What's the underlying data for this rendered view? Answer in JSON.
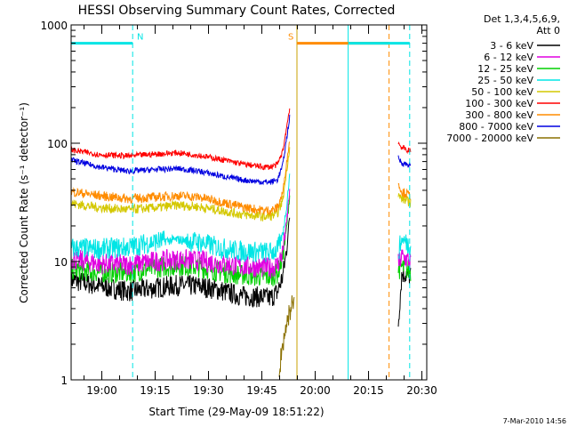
{
  "chart_data": {
    "type": "line",
    "title": "HESSI Observing Summary Count Rates, Corrected",
    "xlabel": "Start Time (29-May-09 18:51:22)",
    "ylabel": "Corrected Count Rate (s⁻¹ detector⁻¹)",
    "y_scale": "log",
    "ylim": [
      1,
      1000
    ],
    "xlim_minutes": [
      0,
      100
    ],
    "x_tick_labels": [
      "19:00",
      "19:15",
      "19:30",
      "19:45",
      "20:00",
      "20:15",
      "20:30"
    ],
    "x_tick_minutes": [
      8.63,
      23.63,
      38.63,
      53.63,
      68.63,
      83.63,
      98.63
    ],
    "y_tick_labels": [
      "1",
      "10",
      "100",
      "1000"
    ],
    "y_tick_values": [
      1,
      10,
      100,
      1000
    ],
    "detector_info": [
      "Det 1,3,4,5,6,9,",
      "Att 0"
    ],
    "footer_date": "7-Mar-2010 14:56",
    "flags": [
      {
        "label": "N",
        "color": "#00e5e5",
        "start_min": 0,
        "end_min": 17.3
      },
      {
        "label": "S",
        "color": "#ff8c00",
        "start_min": 63.5,
        "end_min": 89.4
      },
      {
        "label": "",
        "color": "#00e5e5",
        "start_min": 77.9,
        "end_min": 95.2
      }
    ],
    "vlines": [
      {
        "minute": 17.3,
        "color": "#00e5e5",
        "style": "dashed"
      },
      {
        "minute": 63.5,
        "color": "#c8a000",
        "style": "solid"
      },
      {
        "minute": 77.9,
        "color": "#00e5e5",
        "style": "solid"
      },
      {
        "minute": 89.4,
        "color": "#ff8c00",
        "style": "dashed"
      },
      {
        "minute": 95.2,
        "color": "#00e5e5",
        "style": "dashed"
      }
    ],
    "series": [
      {
        "name": "3 - 6 keV",
        "color": "#000000",
        "points": [
          [
            0,
            7
          ],
          [
            8,
            6.2
          ],
          [
            16,
            5.6
          ],
          [
            24,
            6
          ],
          [
            30,
            6.3
          ],
          [
            36,
            6.2
          ],
          [
            42,
            5.7
          ],
          [
            48,
            5.1
          ],
          [
            54,
            5
          ],
          [
            56,
            4.9
          ],
          [
            58,
            5.5
          ],
          [
            59.5,
            7.5
          ],
          [
            60.5,
            12
          ],
          [
            61.5,
            25
          ]
        ],
        "post": [
          [
            92,
            3
          ],
          [
            93,
            8
          ],
          [
            95.5,
            7.5
          ]
        ]
      },
      {
        "name": "6 - 12 keV",
        "color": "#e000e0",
        "points": [
          [
            0,
            10.5
          ],
          [
            8,
            9.6
          ],
          [
            16,
            9.4
          ],
          [
            24,
            10.1
          ],
          [
            30,
            10.4
          ],
          [
            36,
            10.2
          ],
          [
            42,
            9.6
          ],
          [
            48,
            9.1
          ],
          [
            54,
            8.9
          ],
          [
            56,
            8.8
          ],
          [
            58,
            9.3
          ],
          [
            59.5,
            12
          ],
          [
            60.5,
            20
          ],
          [
            61.5,
            42
          ]
        ],
        "post": [
          [
            92,
            9.5
          ],
          [
            93,
            11
          ],
          [
            95.5,
            10
          ]
        ]
      },
      {
        "name": "12 - 25 keV",
        "color": "#00d000",
        "points": [
          [
            0,
            8.6
          ],
          [
            8,
            8.1
          ],
          [
            16,
            8
          ],
          [
            24,
            8.9
          ],
          [
            30,
            9.3
          ],
          [
            36,
            9
          ],
          [
            42,
            8.2
          ],
          [
            48,
            7.7
          ],
          [
            54,
            7.5
          ],
          [
            56,
            7.4
          ],
          [
            58,
            7.9
          ],
          [
            59.5,
            11
          ],
          [
            60.5,
            18
          ],
          [
            61.5,
            38
          ]
        ],
        "post": [
          [
            92,
            8.5
          ],
          [
            93,
            9
          ],
          [
            95.5,
            8.3
          ]
        ]
      },
      {
        "name": "25 - 50 keV",
        "color": "#00e5e5",
        "points": [
          [
            0,
            13
          ],
          [
            8,
            12.8
          ],
          [
            16,
            13.2
          ],
          [
            24,
            14.8
          ],
          [
            30,
            15.3
          ],
          [
            36,
            14.6
          ],
          [
            42,
            13
          ],
          [
            48,
            12.2
          ],
          [
            54,
            12
          ],
          [
            56,
            12
          ],
          [
            58,
            12.5
          ],
          [
            59.5,
            17
          ],
          [
            60.5,
            28
          ],
          [
            61.5,
            55
          ]
        ],
        "post": [
          [
            92,
            12
          ],
          [
            93,
            15.5
          ],
          [
            95.5,
            13.5
          ]
        ]
      },
      {
        "name": "50 - 100 keV",
        "color": "#d4c800",
        "points": [
          [
            0,
            31
          ],
          [
            8,
            28.5
          ],
          [
            16,
            27.5
          ],
          [
            24,
            28.5
          ],
          [
            30,
            30
          ],
          [
            36,
            29
          ],
          [
            42,
            27
          ],
          [
            48,
            25
          ],
          [
            54,
            24
          ],
          [
            56,
            24
          ],
          [
            58,
            25.5
          ],
          [
            59.5,
            33
          ],
          [
            60.5,
            55
          ],
          [
            61.5,
            95
          ]
        ],
        "post": [
          [
            92,
            36
          ],
          [
            93,
            34
          ],
          [
            95.5,
            31.5
          ]
        ]
      },
      {
        "name": "100 - 300 keV",
        "color": "#ff0000",
        "points": [
          [
            0,
            88
          ],
          [
            8,
            80
          ],
          [
            16,
            78
          ],
          [
            24,
            81
          ],
          [
            30,
            83
          ],
          [
            36,
            79
          ],
          [
            42,
            73
          ],
          [
            48,
            67
          ],
          [
            54,
            63
          ],
          [
            56,
            63
          ],
          [
            58,
            66
          ],
          [
            59.5,
            85
          ],
          [
            60.5,
            130
          ],
          [
            61.5,
            205
          ]
        ],
        "post": [
          [
            92,
            100
          ],
          [
            93,
            92
          ],
          [
            95.5,
            85
          ]
        ]
      },
      {
        "name": "300 - 800 keV",
        "color": "#ff8c00",
        "points": [
          [
            0,
            39
          ],
          [
            8,
            36
          ],
          [
            16,
            34
          ],
          [
            24,
            35
          ],
          [
            30,
            36
          ],
          [
            36,
            35
          ],
          [
            42,
            32
          ],
          [
            48,
            29
          ],
          [
            54,
            27
          ],
          [
            56,
            27
          ],
          [
            58,
            28.5
          ],
          [
            59.5,
            38
          ],
          [
            60.5,
            65
          ],
          [
            61.5,
            110
          ]
        ],
        "post": [
          [
            92,
            45
          ],
          [
            93,
            39
          ],
          [
            95.5,
            36
          ]
        ]
      },
      {
        "name": "800 - 7000 keV",
        "color": "#0000e0",
        "points": [
          [
            0,
            72
          ],
          [
            8,
            63
          ],
          [
            16,
            58
          ],
          [
            24,
            60
          ],
          [
            30,
            61
          ],
          [
            36,
            58
          ],
          [
            42,
            53
          ],
          [
            48,
            49
          ],
          [
            54,
            47
          ],
          [
            56,
            47
          ],
          [
            58,
            49
          ],
          [
            59.5,
            65
          ],
          [
            60.5,
            105
          ],
          [
            61.5,
            170
          ]
        ],
        "post": [
          [
            92,
            75
          ],
          [
            93,
            68
          ],
          [
            95.5,
            65
          ]
        ]
      },
      {
        "name": "7000 - 20000 keV",
        "color": "#8b7000",
        "points": [
          [
            58.5,
            1
          ],
          [
            59,
            1.6
          ],
          [
            60,
            2.4
          ],
          [
            61,
            3.4
          ],
          [
            62,
            4.2
          ],
          [
            62.7,
            5
          ]
        ],
        "post": []
      }
    ]
  }
}
